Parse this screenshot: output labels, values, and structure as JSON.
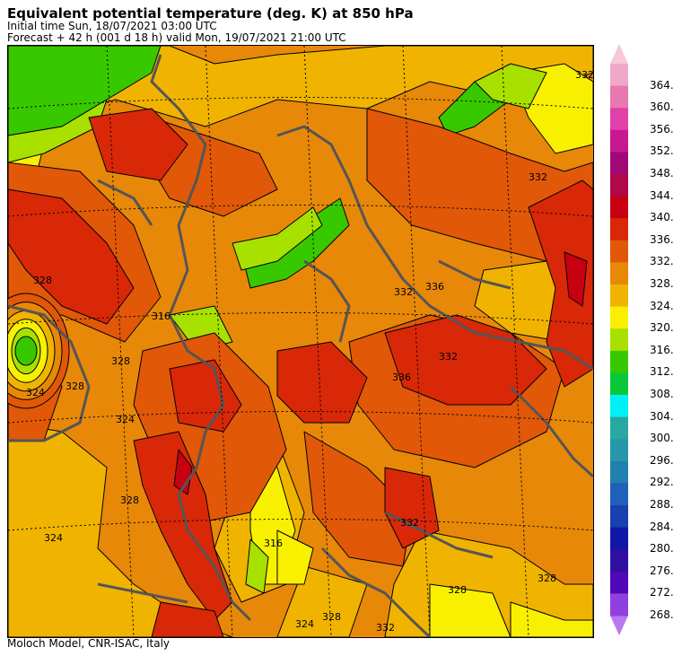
{
  "header": {
    "title": "Equivalent potential temperature (deg. K) at 850 hPa",
    "initial": "Initial time  Sun, 18/07/2021  03:00 UTC",
    "forecast": "Forecast  +  42 h  (001 d 18 h)  valid Mon, 19/07/2021 21:00 UTC"
  },
  "footer": "Moloch Model, CNR-ISAC, Italy",
  "colorbar": {
    "levels": [
      {
        "label": "364.",
        "color": "#f0a8c8"
      },
      {
        "label": "360.",
        "color": "#e878b0"
      },
      {
        "label": "356.",
        "color": "#e040a8"
      },
      {
        "label": "352.",
        "color": "#c81890"
      },
      {
        "label": "348.",
        "color": "#a00878"
      },
      {
        "label": "344.",
        "color": "#b00848"
      },
      {
        "label": "340.",
        "color": "#c80010"
      },
      {
        "label": "336.",
        "color": "#d82808"
      },
      {
        "label": "332.",
        "color": "#e05808"
      },
      {
        "label": "328.",
        "color": "#e88808"
      },
      {
        "label": "324.",
        "color": "#f0b400"
      },
      {
        "label": "320.",
        "color": "#f8f000"
      },
      {
        "label": "316.",
        "color": "#a8e000"
      },
      {
        "label": "312.",
        "color": "#38c800"
      },
      {
        "label": "308.",
        "color": "#08c838"
      },
      {
        "label": "304.",
        "color": "#00f0f8"
      },
      {
        "label": "300.",
        "color": "#28a8a0"
      },
      {
        "label": "296.",
        "color": "#2898a8"
      },
      {
        "label": "292.",
        "color": "#2080b0"
      },
      {
        "label": "288.",
        "color": "#2060b8"
      },
      {
        "label": "284.",
        "color": "#1840b0"
      },
      {
        "label": "280.",
        "color": "#1018a8"
      },
      {
        "label": "276.",
        "color": "#3010a0"
      },
      {
        "label": "272.",
        "color": "#5008b8"
      },
      {
        "label": "268.",
        "color": "#9040e0"
      }
    ],
    "top_cap_color": "#f8c8d8",
    "bottom_cap_color": "#b878f0"
  },
  "map": {
    "contour_labels": [
      "332",
      "328",
      "324",
      "328",
      "328",
      "328",
      "324",
      "336",
      "332",
      "324",
      "328",
      "316",
      "316",
      "328",
      "332",
      "336",
      "332",
      "328",
      "332",
      "332",
      "324"
    ],
    "fill_colors": {
      "c336": "#d82808",
      "c332": "#e05808",
      "c328": "#e88808",
      "c324": "#f0b400",
      "c320": "#f8f000",
      "c316": "#a8e000",
      "c312": "#38c800",
      "c340": "#c80010"
    }
  }
}
